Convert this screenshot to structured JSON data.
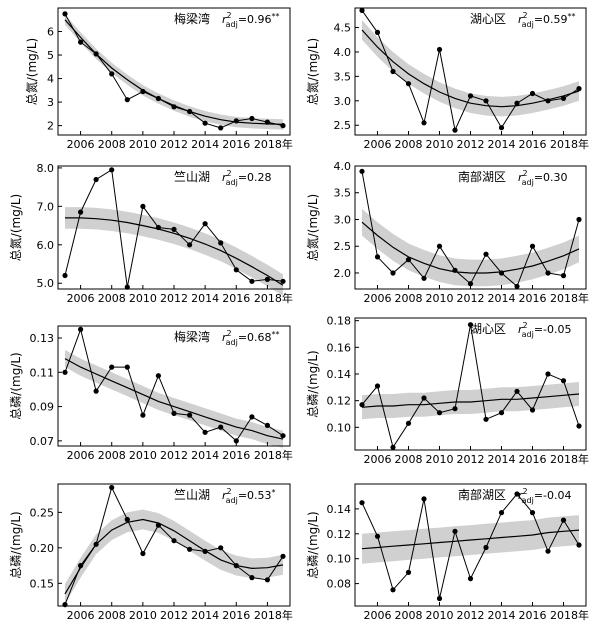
{
  "chart_data": [
    {
      "type": "line",
      "region": "梅梁湾",
      "stat": "0.96",
      "sig": "**",
      "ylabel": "总氮/(mg/L)",
      "xlabel_suffix": "年",
      "x": [
        2005,
        2006,
        2007,
        2008,
        2009,
        2010,
        2011,
        2012,
        2013,
        2014,
        2015,
        2016,
        2017,
        2018,
        2019
      ],
      "xticks": [
        2006,
        2008,
        2010,
        2012,
        2014,
        2016,
        2018
      ],
      "y": [
        6.75,
        5.55,
        5.05,
        4.2,
        3.1,
        3.45,
        3.15,
        2.8,
        2.6,
        2.1,
        1.9,
        2.2,
        2.3,
        2.15,
        2.0
      ],
      "fit": [
        6.5,
        5.75,
        5.05,
        4.45,
        3.95,
        3.5,
        3.15,
        2.85,
        2.6,
        2.4,
        2.25,
        2.15,
        2.1,
        2.07,
        2.05
      ],
      "band": 0.22,
      "ylim": [
        1.6,
        7.0
      ],
      "yticks": [
        2,
        3,
        4,
        5,
        6
      ],
      "ytick_labels": [
        "2",
        "3",
        "4",
        "5",
        "6"
      ]
    },
    {
      "type": "line",
      "region": "湖心区",
      "stat": "0.59",
      "sig": "**",
      "ylabel": "总氮/(mg/L)",
      "xlabel_suffix": "年",
      "x": [
        2005,
        2006,
        2007,
        2008,
        2009,
        2010,
        2011,
        2012,
        2013,
        2014,
        2015,
        2016,
        2017,
        2018,
        2019
      ],
      "xticks": [
        2006,
        2008,
        2010,
        2012,
        2014,
        2016,
        2018
      ],
      "y": [
        4.85,
        4.4,
        3.6,
        3.35,
        2.55,
        4.05,
        2.4,
        3.1,
        3.0,
        2.45,
        2.95,
        3.15,
        3.0,
        3.05,
        3.25
      ],
      "fit": [
        4.45,
        4.1,
        3.8,
        3.55,
        3.35,
        3.18,
        3.05,
        2.95,
        2.9,
        2.88,
        2.9,
        2.95,
        3.02,
        3.1,
        3.2
      ],
      "band": 0.2,
      "ylim": [
        2.3,
        4.9
      ],
      "yticks": [
        2.5,
        3.0,
        3.5,
        4.0,
        4.5
      ],
      "ytick_labels": [
        "2.5",
        "3.0",
        "3.5",
        "4.0",
        "4.5"
      ]
    },
    {
      "type": "line",
      "region": "竺山湖",
      "stat": "0.28",
      "sig": "",
      "ylabel": "总氮/(mg/L)",
      "xlabel_suffix": "年",
      "x": [
        2005,
        2006,
        2007,
        2008,
        2009,
        2010,
        2011,
        2012,
        2013,
        2014,
        2015,
        2016,
        2017,
        2018,
        2019
      ],
      "xticks": [
        2006,
        2008,
        2010,
        2012,
        2014,
        2016,
        2018
      ],
      "y": [
        5.2,
        6.85,
        7.7,
        7.95,
        4.9,
        7.0,
        6.45,
        6.4,
        6.0,
        6.55,
        6.05,
        5.35,
        5.05,
        5.1,
        5.05
      ],
      "fit": [
        6.7,
        6.7,
        6.68,
        6.64,
        6.58,
        6.5,
        6.41,
        6.3,
        6.17,
        6.02,
        5.85,
        5.65,
        5.43,
        5.2,
        4.95
      ],
      "band": 0.28,
      "ylim": [
        4.85,
        8.05
      ],
      "yticks": [
        5.0,
        6.0,
        7.0,
        8.0
      ],
      "ytick_labels": [
        "5.0",
        "6.0",
        "7.0",
        "8.0"
      ]
    },
    {
      "type": "line",
      "region": "南部湖区",
      "stat": "0.30",
      "sig": "",
      "ylabel": "总氮/(mg/L)",
      "xlabel_suffix": "年",
      "x": [
        2005,
        2006,
        2007,
        2008,
        2009,
        2010,
        2011,
        2012,
        2013,
        2014,
        2015,
        2016,
        2017,
        2018,
        2019
      ],
      "xticks": [
        2006,
        2008,
        2010,
        2012,
        2014,
        2016,
        2018
      ],
      "y": [
        3.9,
        2.3,
        2.0,
        2.25,
        1.9,
        2.5,
        2.05,
        1.8,
        2.35,
        2.0,
        1.75,
        2.5,
        2.0,
        1.95,
        3.0
      ],
      "fit": [
        2.95,
        2.7,
        2.48,
        2.3,
        2.18,
        2.08,
        2.02,
        2.0,
        2.0,
        2.02,
        2.07,
        2.13,
        2.22,
        2.32,
        2.45
      ],
      "band": 0.25,
      "ylim": [
        1.7,
        4.0
      ],
      "yticks": [
        2.0,
        2.5,
        3.0,
        3.5,
        4.0
      ],
      "ytick_labels": [
        "2.0",
        "2.5",
        "3.0",
        "3.5",
        "4.0"
      ]
    },
    {
      "type": "line",
      "region": "梅梁湾",
      "stat": "0.68",
      "sig": "**",
      "ylabel": "总磷/(mg/L)",
      "xlabel_suffix": "年",
      "x": [
        2005,
        2006,
        2007,
        2008,
        2009,
        2010,
        2011,
        2012,
        2013,
        2014,
        2015,
        2016,
        2017,
        2018,
        2019
      ],
      "xticks": [
        2006,
        2008,
        2010,
        2012,
        2014,
        2016,
        2018
      ],
      "y": [
        0.11,
        0.135,
        0.099,
        0.113,
        0.113,
        0.085,
        0.108,
        0.086,
        0.085,
        0.075,
        0.078,
        0.07,
        0.084,
        0.079,
        0.073
      ],
      "fit": [
        0.118,
        0.113,
        0.109,
        0.105,
        0.101,
        0.097,
        0.093,
        0.09,
        0.087,
        0.084,
        0.081,
        0.078,
        0.076,
        0.073,
        0.071
      ],
      "band": 0.005,
      "ylim": [
        0.067,
        0.137
      ],
      "yticks": [
        0.07,
        0.09,
        0.11,
        0.13
      ],
      "ytick_labels": [
        "0.07",
        "0.09",
        "0.11",
        "0.13"
      ]
    },
    {
      "type": "line",
      "region": "湖心区",
      "stat": "-0.05",
      "sig": "",
      "ylabel": "总磷/(mg/L)",
      "xlabel_suffix": "年",
      "x": [
        2005,
        2006,
        2007,
        2008,
        2009,
        2010,
        2011,
        2012,
        2013,
        2014,
        2015,
        2016,
        2017,
        2018,
        2019
      ],
      "xticks": [
        2006,
        2008,
        2010,
        2012,
        2014,
        2016,
        2018
      ],
      "y": [
        0.117,
        0.131,
        0.085,
        0.103,
        0.122,
        0.111,
        0.114,
        0.177,
        0.106,
        0.111,
        0.127,
        0.113,
        0.14,
        0.135,
        0.101
      ],
      "fit": [
        0.115,
        0.116,
        0.116,
        0.117,
        0.117,
        0.118,
        0.119,
        0.119,
        0.12,
        0.121,
        0.121,
        0.122,
        0.123,
        0.124,
        0.125
      ],
      "band": 0.009,
      "ylim": [
        0.083,
        0.182
      ],
      "yticks": [
        0.1,
        0.12,
        0.14,
        0.16,
        0.18
      ],
      "ytick_labels": [
        "0.10",
        "0.12",
        "0.14",
        "0.16",
        "0.18"
      ]
    },
    {
      "type": "line",
      "region": "竺山湖",
      "stat": "0.53",
      "sig": "*",
      "ylabel": "总磷/(mg/L)",
      "xlabel_suffix": "年",
      "x": [
        2005,
        2006,
        2007,
        2008,
        2009,
        2010,
        2011,
        2012,
        2013,
        2014,
        2015,
        2016,
        2017,
        2018,
        2019
      ],
      "xticks": [
        2006,
        2008,
        2010,
        2012,
        2014,
        2016,
        2018
      ],
      "y": [
        0.12,
        0.175,
        0.205,
        0.285,
        0.24,
        0.192,
        0.232,
        0.21,
        0.198,
        0.195,
        0.2,
        0.175,
        0.158,
        0.155,
        0.188
      ],
      "fit": [
        0.135,
        0.172,
        0.205,
        0.225,
        0.236,
        0.24,
        0.235,
        0.224,
        0.21,
        0.196,
        0.183,
        0.175,
        0.171,
        0.172,
        0.176
      ],
      "band": 0.014,
      "ylim": [
        0.118,
        0.29
      ],
      "yticks": [
        0.15,
        0.2,
        0.25
      ],
      "ytick_labels": [
        "0.15",
        "0.20",
        "0.25"
      ]
    },
    {
      "type": "line",
      "region": "南部湖区",
      "stat": "-0.04",
      "sig": "",
      "ylabel": "总磷/(mg/L)",
      "xlabel_suffix": "年",
      "x": [
        2005,
        2006,
        2007,
        2008,
        2009,
        2010,
        2011,
        2012,
        2013,
        2014,
        2015,
        2016,
        2017,
        2018,
        2019
      ],
      "xticks": [
        2006,
        2008,
        2010,
        2012,
        2014,
        2016,
        2018
      ],
      "y": [
        0.145,
        0.118,
        0.075,
        0.089,
        0.148,
        0.068,
        0.122,
        0.084,
        0.109,
        0.137,
        0.152,
        0.137,
        0.106,
        0.131,
        0.111
      ],
      "fit": [
        0.108,
        0.109,
        0.11,
        0.111,
        0.112,
        0.113,
        0.114,
        0.115,
        0.116,
        0.117,
        0.118,
        0.119,
        0.121,
        0.122,
        0.123
      ],
      "band": 0.012,
      "ylim": [
        0.062,
        0.16
      ],
      "yticks": [
        0.08,
        0.1,
        0.12,
        0.14
      ],
      "ytick_labels": [
        "0.08",
        "0.10",
        "0.12",
        "0.14"
      ]
    }
  ]
}
